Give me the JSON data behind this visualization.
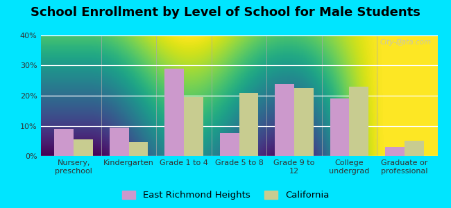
{
  "title": "School Enrollment by Level of School for Male Students",
  "categories": [
    "Nursery,\npreschool",
    "Kindergarten",
    "Grade 1 to 4",
    "Grade 5 to 8",
    "Grade 9 to\n12",
    "College\nundergrad",
    "Graduate or\nprofessional"
  ],
  "east_richmond": [
    9,
    9.5,
    29,
    7.5,
    24,
    19,
    3
  ],
  "california": [
    5.5,
    4.5,
    19.5,
    21,
    22.5,
    23,
    5
  ],
  "east_richmond_color": "#cc99cc",
  "california_color": "#c8cc90",
  "background_outer": "#00e5ff",
  "background_inner_top": "#f5fff5",
  "background_inner_bottom": "#dceedd",
  "ylim": [
    0,
    40
  ],
  "yticks": [
    0,
    10,
    20,
    30,
    40
  ],
  "ytick_labels": [
    "0%",
    "10%",
    "20%",
    "30%",
    "40%"
  ],
  "legend_labels": [
    "East Richmond Heights",
    "California"
  ],
  "title_fontsize": 13,
  "tick_fontsize": 8,
  "legend_fontsize": 9.5
}
